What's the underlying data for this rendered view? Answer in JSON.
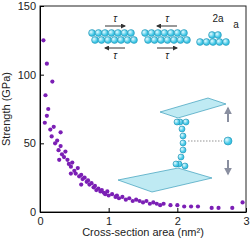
{
  "chart_data": {
    "type": "scatter",
    "x_label": "Cross-section area (nm²)",
    "y_label": "Strength (GPa)",
    "annotations": [
      "τ",
      "τ",
      "τ",
      "τ",
      "2a",
      "a"
    ],
    "xlim": [
      0,
      3
    ],
    "ylim": [
      0,
      150
    ],
    "xticks": [
      0,
      1,
      2,
      3
    ],
    "yticks": [
      0,
      50,
      100,
      150
    ],
    "color": "#7b1fb5",
    "marker": "circle",
    "x": [
      0.05,
      0.08,
      0.1,
      0.12,
      0.15,
      0.17,
      0.2,
      0.22,
      0.25,
      0.27,
      0.3,
      0.32,
      0.35,
      0.37,
      0.4,
      0.42,
      0.45,
      0.47,
      0.5,
      0.52,
      0.55,
      0.57,
      0.6,
      0.62,
      0.65,
      0.68,
      0.7,
      0.72,
      0.75,
      0.78,
      0.8,
      0.82,
      0.85,
      0.88,
      0.9,
      0.93,
      0.95,
      0.98,
      1.0,
      1.05,
      1.1,
      1.12,
      1.15,
      1.2,
      1.25,
      1.3,
      1.35,
      1.4,
      1.45,
      1.5,
      1.55,
      1.6,
      1.65,
      1.7,
      1.75,
      1.8,
      1.9,
      2.0,
      2.1,
      2.2,
      2.3,
      2.5,
      2.6,
      2.8,
      2.95,
      0.1,
      0.18,
      0.07,
      0.28,
      0.45,
      0.6,
      0.3
    ],
    "values": [
      125,
      85,
      70,
      75,
      60,
      55,
      62,
      50,
      52,
      45,
      48,
      42,
      40,
      44,
      38,
      35,
      33,
      36,
      30,
      28,
      32,
      26,
      27,
      24,
      25,
      22,
      23,
      20,
      21,
      18,
      19,
      16,
      17,
      15,
      16,
      14,
      13,
      15,
      12,
      13,
      11,
      12,
      10,
      11,
      9,
      10,
      8,
      9,
      8,
      7,
      8,
      6,
      7,
      6,
      5,
      6,
      5,
      5,
      4,
      4,
      4,
      3,
      3,
      3,
      7,
      108,
      95,
      65,
      38,
      28,
      20,
      58
    ]
  }
}
